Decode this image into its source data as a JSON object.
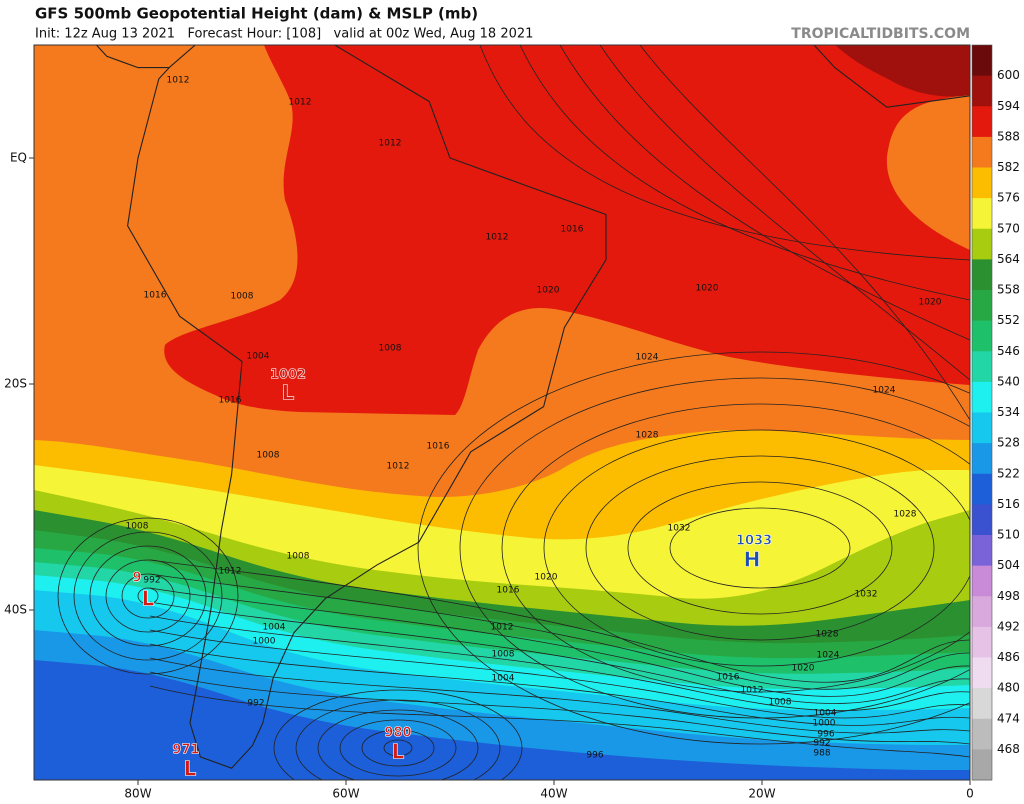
{
  "header": {
    "title": "GFS 500mb Geopotential Height (dam) & MSLP (mb)",
    "subtitle": "Init: 12z Aug 13 2021   Forecast Hour: [108]   valid at 00z Wed, Aug 18 2021",
    "site": "TROPICALTIDBITS.COM"
  },
  "colorbar": {
    "labels": [
      "600",
      "594",
      "588",
      "582",
      "576",
      "570",
      "564",
      "558",
      "552",
      "546",
      "540",
      "534",
      "528",
      "522",
      "516",
      "510",
      "504",
      "498",
      "492",
      "486",
      "480",
      "474",
      "468"
    ]
  },
  "axes": {
    "lat_labels": [
      "EQ",
      "20S",
      "40S"
    ],
    "lon_labels": [
      "80W",
      "60W",
      "40W",
      "20W",
      "0"
    ]
  },
  "isobar_labels": [
    "1012",
    "1012",
    "1012",
    "1016",
    "1008",
    "1004",
    "1008",
    "1016",
    "1008",
    "1012",
    "1016",
    "1012",
    "1016",
    "1020",
    "1020",
    "1020",
    "1024",
    "1024",
    "1028",
    "1028",
    "1032",
    "1032",
    "1028",
    "1024",
    "1020",
    "1016",
    "1012",
    "1008",
    "1004",
    "1000",
    "996",
    "992",
    "988",
    "1020",
    "1016",
    "1012",
    "1008",
    "1004",
    "1008",
    "1012",
    "1004",
    "1000",
    "992",
    "996",
    "1008",
    "992"
  ],
  "centers": [
    {
      "value": "1033",
      "letter": "H"
    },
    {
      "value": "1002",
      "letter": "L"
    },
    {
      "value": "9",
      "letter": "L"
    },
    {
      "value": "980",
      "letter": "L"
    },
    {
      "value": "971",
      "letter": "L"
    }
  ]
}
